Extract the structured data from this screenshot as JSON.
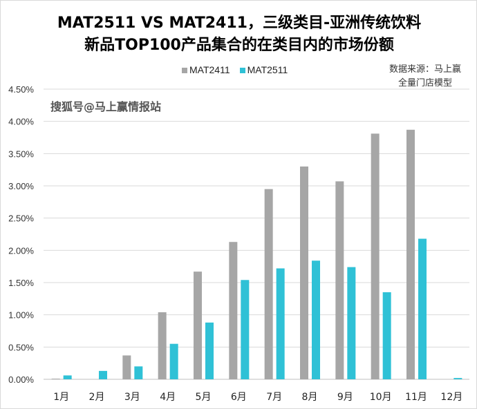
{
  "chart_data": {
    "type": "bar",
    "title": [
      "MAT2511 VS MAT2411，三级类目-亚洲传统饮料",
      "新品TOP100产品集合的在类目内的市场份额"
    ],
    "categories": [
      "1月",
      "2月",
      "3月",
      "4月",
      "5月",
      "6月",
      "7月",
      "8月",
      "9月",
      "10月",
      "11月",
      "12月"
    ],
    "series": [
      {
        "name": "MAT2411",
        "color": "#a6a6a6",
        "values": [
          0.01,
          0,
          0.37,
          1.04,
          1.67,
          2.13,
          2.95,
          3.3,
          3.07,
          3.81,
          3.87,
          0
        ]
      },
      {
        "name": "MAT2511",
        "color": "#2fc1d6",
        "values": [
          0.06,
          0.13,
          0.2,
          0.55,
          0.88,
          1.54,
          1.72,
          1.84,
          1.74,
          1.35,
          2.18,
          0.02
        ]
      }
    ],
    "yticks": [
      "0.00%",
      "0.50%",
      "1.00%",
      "1.50%",
      "2.00%",
      "2.50%",
      "3.00%",
      "3.50%",
      "4.00%",
      "4.50%"
    ],
    "ylim": [
      0,
      4.5
    ],
    "ylabel": "",
    "xlabel": "",
    "legend": "top-center",
    "grid": true
  },
  "source": [
    "数据来源：马上赢",
    "全量门店模型"
  ],
  "watermark": "搜狐号@马上赢情报站"
}
